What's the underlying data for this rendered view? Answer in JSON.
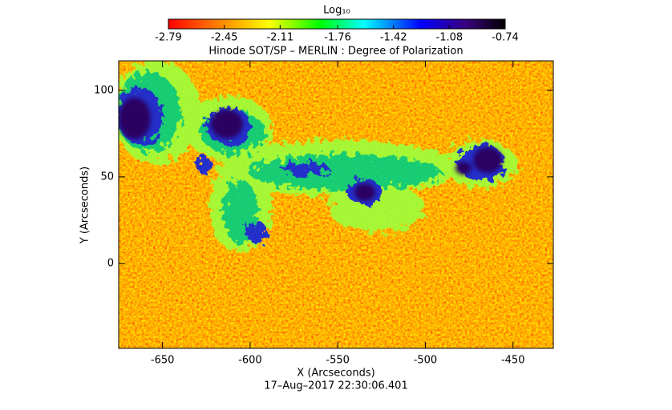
{
  "chart_data": {
    "type": "image",
    "title": "Hinode SOT/SP – MERLIN : Degree of Polarization",
    "colorbar_label": "Log₁₀",
    "clim": [
      -2.79,
      -0.74
    ],
    "cticks": [
      -2.79,
      -2.45,
      -2.11,
      -1.76,
      -1.42,
      -1.08,
      -0.74
    ],
    "xlabel": "X (Arcseconds)",
    "ylabel": "Y (Arcseconds)",
    "xlim": [
      -675,
      -427
    ],
    "xticks": [
      -650,
      -600,
      -550,
      -500,
      -450
    ],
    "ylim": [
      -49,
      117
    ],
    "yticks": [
      0,
      50,
      100
    ],
    "footer": "17–Aug–2017 22:30:06.401"
  }
}
